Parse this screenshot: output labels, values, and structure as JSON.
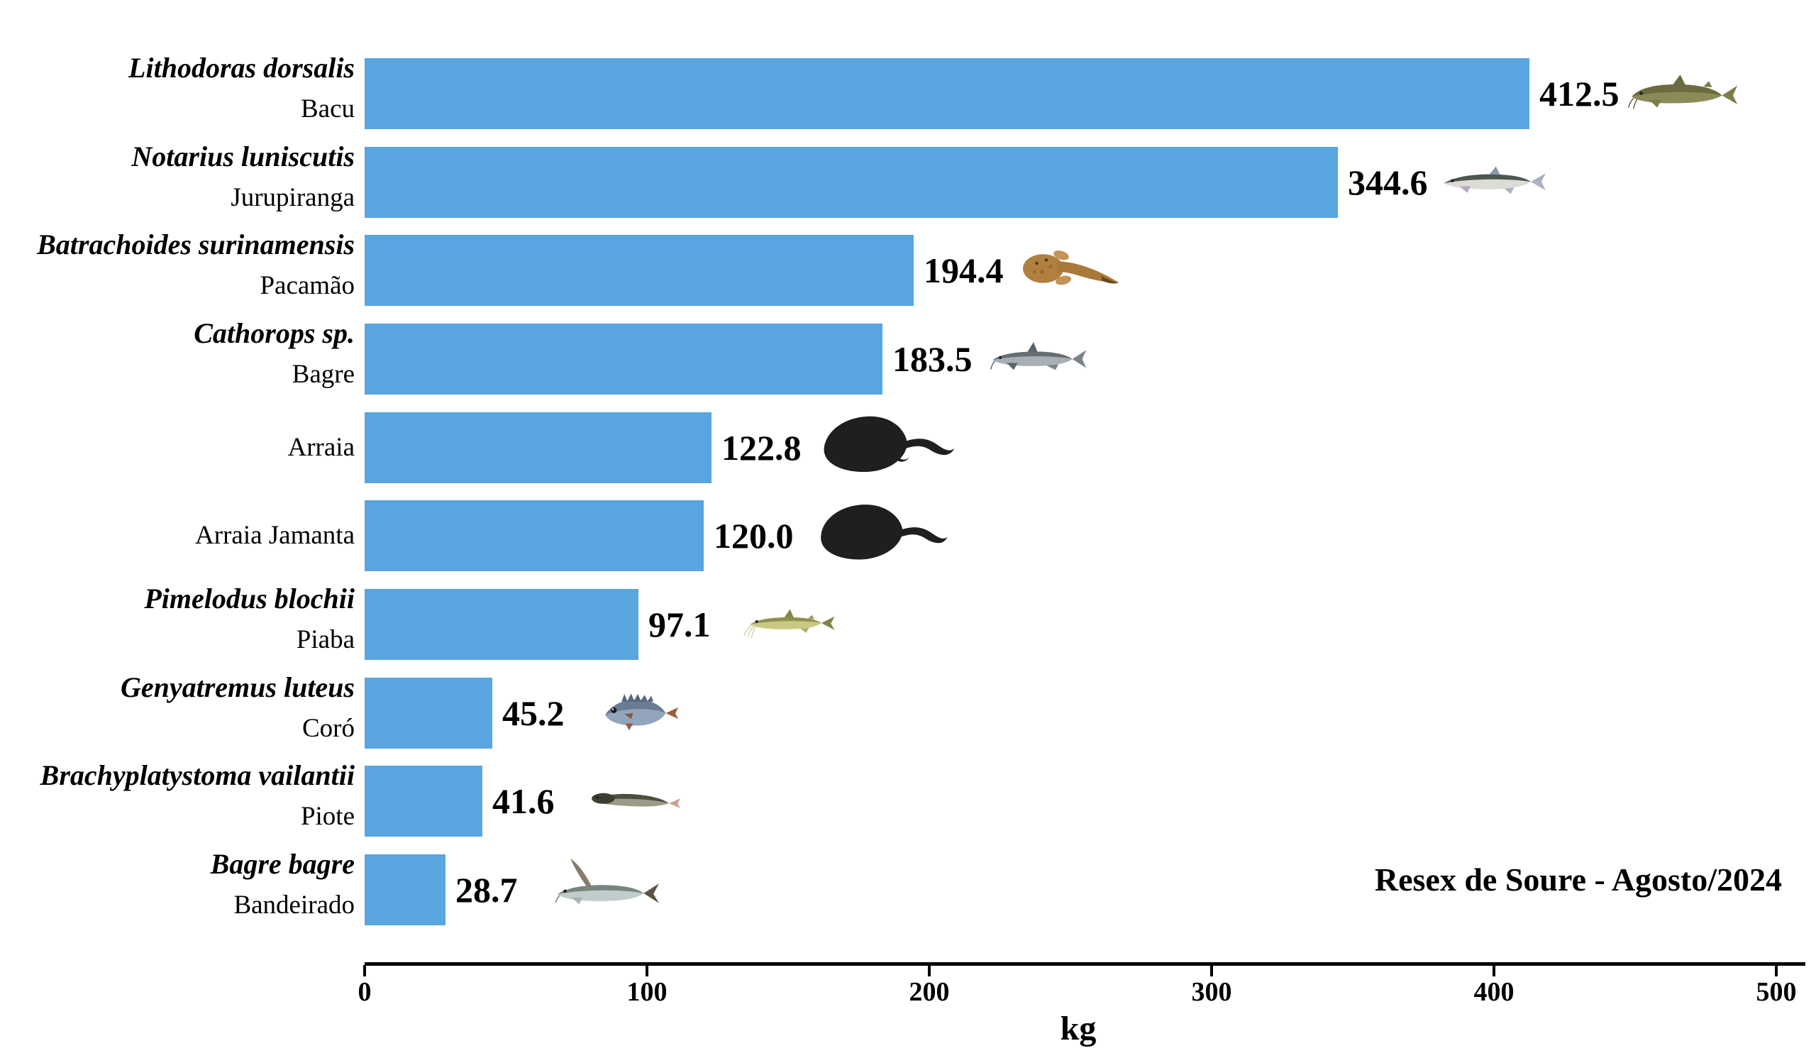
{
  "chart_data": {
    "type": "bar",
    "orientation": "horizontal",
    "xlabel": "kg",
    "xlim": [
      0,
      500
    ],
    "xticks": [
      0,
      100,
      200,
      300,
      400,
      500
    ],
    "grid": false,
    "legend": "none",
    "annotation": "Resex de Soure - Agosto/2024",
    "bar_color": "#58A5E0",
    "axis_color": "#000000",
    "rows": [
      {
        "species": "Lithodoras dorsalis",
        "common": "Bacu",
        "value": 412.5,
        "label": "412.5",
        "icon": "bacu-fish"
      },
      {
        "species": "Notarius luniscutis",
        "common": "Jurupiranga",
        "value": 344.6,
        "label": "344.6",
        "icon": "jurupiranga-fish"
      },
      {
        "species": "Batrachoides surinamensis",
        "common": "Pacamão",
        "value": 194.4,
        "label": "194.4",
        "icon": "pacamao-fish"
      },
      {
        "species": "Cathorops sp.",
        "common": "Bagre",
        "value": 183.5,
        "label": "183.5",
        "icon": "bagre-fish"
      },
      {
        "species": "",
        "common": "Arraia",
        "value": 122.8,
        "label": "122.8",
        "icon": "arraia-stingray"
      },
      {
        "species": "",
        "common": "Arraia Jamanta",
        "value": 120.0,
        "label": "120.0",
        "icon": "arraia-jamanta-stingray"
      },
      {
        "species": "Pimelodus blochii",
        "common": "Piaba",
        "value": 97.1,
        "label": "97.1",
        "icon": "piaba-fish"
      },
      {
        "species": "Genyatremus luteus",
        "common": "Coró",
        "value": 45.2,
        "label": "45.2",
        "icon": "coro-fish"
      },
      {
        "species": "Brachyplatystoma vailantii",
        "common": "Piote",
        "value": 41.6,
        "label": "41.6",
        "icon": "piote-fish"
      },
      {
        "species": "Bagre bagre",
        "common": "Bandeirado",
        "value": 28.7,
        "label": "28.7",
        "icon": "bandeirado-fish"
      }
    ]
  }
}
